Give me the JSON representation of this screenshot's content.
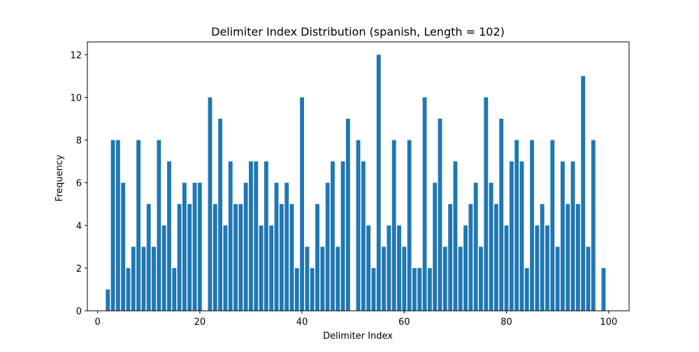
{
  "chart_data": {
    "type": "bar",
    "title": "Delimiter Index Distribution (spanish, Length = 102)",
    "xlabel": "Delimiter Index",
    "ylabel": "Frequency",
    "xlim": [
      -2,
      104
    ],
    "ylim": [
      0,
      12.6
    ],
    "x_ticks": [
      0,
      20,
      40,
      60,
      80,
      100
    ],
    "y_ticks": [
      0,
      2,
      4,
      6,
      8,
      10,
      12
    ],
    "grid": false,
    "legend": "none",
    "bar_color": "#1f77b4",
    "bar_width": 0.8,
    "points": [
      {
        "x": 2,
        "y": 1
      },
      {
        "x": 3,
        "y": 8
      },
      {
        "x": 4,
        "y": 8
      },
      {
        "x": 5,
        "y": 6
      },
      {
        "x": 6,
        "y": 2
      },
      {
        "x": 7,
        "y": 3
      },
      {
        "x": 8,
        "y": 8
      },
      {
        "x": 9,
        "y": 3
      },
      {
        "x": 10,
        "y": 5
      },
      {
        "x": 11,
        "y": 3
      },
      {
        "x": 12,
        "y": 8
      },
      {
        "x": 13,
        "y": 4
      },
      {
        "x": 14,
        "y": 7
      },
      {
        "x": 15,
        "y": 2
      },
      {
        "x": 16,
        "y": 5
      },
      {
        "x": 17,
        "y": 6
      },
      {
        "x": 18,
        "y": 5
      },
      {
        "x": 19,
        "y": 6
      },
      {
        "x": 20,
        "y": 6
      },
      {
        "x": 22,
        "y": 10
      },
      {
        "x": 23,
        "y": 5
      },
      {
        "x": 24,
        "y": 9
      },
      {
        "x": 25,
        "y": 4
      },
      {
        "x": 26,
        "y": 7
      },
      {
        "x": 27,
        "y": 5
      },
      {
        "x": 28,
        "y": 5
      },
      {
        "x": 29,
        "y": 6
      },
      {
        "x": 30,
        "y": 7
      },
      {
        "x": 31,
        "y": 7
      },
      {
        "x": 32,
        "y": 4
      },
      {
        "x": 33,
        "y": 7
      },
      {
        "x": 34,
        "y": 4
      },
      {
        "x": 35,
        "y": 6
      },
      {
        "x": 36,
        "y": 5
      },
      {
        "x": 37,
        "y": 6
      },
      {
        "x": 38,
        "y": 5
      },
      {
        "x": 39,
        "y": 2
      },
      {
        "x": 40,
        "y": 10
      },
      {
        "x": 41,
        "y": 3
      },
      {
        "x": 42,
        "y": 2
      },
      {
        "x": 43,
        "y": 5
      },
      {
        "x": 44,
        "y": 3
      },
      {
        "x": 45,
        "y": 6
      },
      {
        "x": 46,
        "y": 7
      },
      {
        "x": 47,
        "y": 3
      },
      {
        "x": 48,
        "y": 7
      },
      {
        "x": 49,
        "y": 9
      },
      {
        "x": 51,
        "y": 8
      },
      {
        "x": 52,
        "y": 7
      },
      {
        "x": 53,
        "y": 4
      },
      {
        "x": 54,
        "y": 2
      },
      {
        "x": 55,
        "y": 12
      },
      {
        "x": 56,
        "y": 3
      },
      {
        "x": 57,
        "y": 4
      },
      {
        "x": 58,
        "y": 8
      },
      {
        "x": 59,
        "y": 4
      },
      {
        "x": 60,
        "y": 3
      },
      {
        "x": 61,
        "y": 8
      },
      {
        "x": 62,
        "y": 2
      },
      {
        "x": 63,
        "y": 2
      },
      {
        "x": 64,
        "y": 10
      },
      {
        "x": 65,
        "y": 2
      },
      {
        "x": 66,
        "y": 6
      },
      {
        "x": 67,
        "y": 9
      },
      {
        "x": 68,
        "y": 3
      },
      {
        "x": 69,
        "y": 5
      },
      {
        "x": 70,
        "y": 7
      },
      {
        "x": 71,
        "y": 3
      },
      {
        "x": 72,
        "y": 4
      },
      {
        "x": 73,
        "y": 5
      },
      {
        "x": 74,
        "y": 6
      },
      {
        "x": 75,
        "y": 3
      },
      {
        "x": 76,
        "y": 10
      },
      {
        "x": 77,
        "y": 6
      },
      {
        "x": 78,
        "y": 5
      },
      {
        "x": 79,
        "y": 9
      },
      {
        "x": 80,
        "y": 4
      },
      {
        "x": 81,
        "y": 7
      },
      {
        "x": 82,
        "y": 8
      },
      {
        "x": 83,
        "y": 7
      },
      {
        "x": 84,
        "y": 2
      },
      {
        "x": 85,
        "y": 8
      },
      {
        "x": 86,
        "y": 4
      },
      {
        "x": 87,
        "y": 5
      },
      {
        "x": 88,
        "y": 4
      },
      {
        "x": 89,
        "y": 8
      },
      {
        "x": 90,
        "y": 3
      },
      {
        "x": 91,
        "y": 7
      },
      {
        "x": 92,
        "y": 5
      },
      {
        "x": 93,
        "y": 7
      },
      {
        "x": 94,
        "y": 5
      },
      {
        "x": 95,
        "y": 11
      },
      {
        "x": 96,
        "y": 3
      },
      {
        "x": 97,
        "y": 8
      },
      {
        "x": 99,
        "y": 2
      }
    ]
  }
}
